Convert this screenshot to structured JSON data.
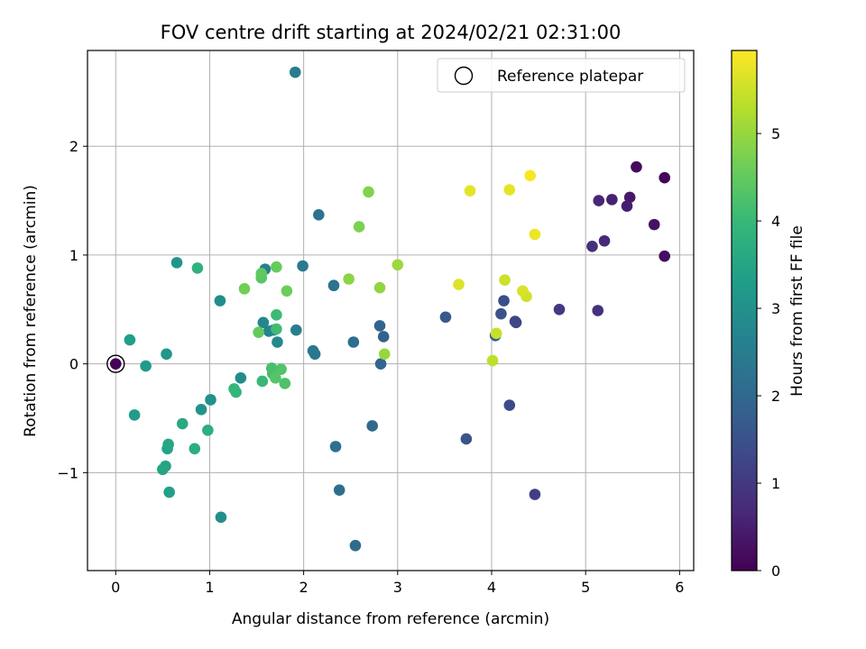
{
  "chart_data": {
    "type": "scatter",
    "title": "FOV centre drift starting at 2024/02/21 02:31:00",
    "xlabel": "Angular distance from reference (arcmin)",
    "ylabel": "Rotation from reference (arcmin)",
    "xlim": [
      -0.3,
      6.15
    ],
    "ylim": [
      -1.9,
      2.88
    ],
    "xticks": [
      0,
      1,
      2,
      3,
      4,
      5,
      6
    ],
    "xtick_labels": [
      "0",
      "1",
      "2",
      "3",
      "4",
      "5",
      "6"
    ],
    "yticks": [
      -1,
      0,
      1,
      2
    ],
    "ytick_labels": [
      "−1",
      "0",
      "1",
      "2"
    ],
    "grid": true,
    "legend": {
      "position": "upper right",
      "entries": [
        "Reference platepar"
      ]
    },
    "reference": {
      "x": 0,
      "y": 0,
      "label": "Reference platepar"
    },
    "colorbar": {
      "label": "Hours from first FF file",
      "colormap": "viridis",
      "range": [
        0,
        5.95
      ],
      "ticks": [
        0,
        1,
        2,
        3,
        4,
        5
      ],
      "tick_labels": [
        "0",
        "1",
        "2",
        "3",
        "4",
        "5"
      ]
    },
    "points": [
      {
        "x": 0.0,
        "y": 0.0,
        "h": 0.0
      },
      {
        "x": 5.84,
        "y": 1.71,
        "h": 0.05
      },
      {
        "x": 5.54,
        "y": 1.81,
        "h": 0.15
      },
      {
        "x": 5.84,
        "y": 0.99,
        "h": 0.2
      },
      {
        "x": 5.73,
        "y": 1.28,
        "h": 0.3
      },
      {
        "x": 5.47,
        "y": 1.53,
        "h": 0.4
      },
      {
        "x": 5.44,
        "y": 1.45,
        "h": 0.5
      },
      {
        "x": 5.28,
        "y": 1.51,
        "h": 0.55
      },
      {
        "x": 5.14,
        "y": 1.5,
        "h": 0.65
      },
      {
        "x": 5.2,
        "y": 1.13,
        "h": 0.7
      },
      {
        "x": 5.07,
        "y": 1.08,
        "h": 0.8
      },
      {
        "x": 5.13,
        "y": 0.49,
        "h": 0.85
      },
      {
        "x": 4.72,
        "y": 0.5,
        "h": 1.0
      },
      {
        "x": 4.46,
        "y": -1.2,
        "h": 1.1
      },
      {
        "x": 4.25,
        "y": 0.39,
        "h": 1.2
      },
      {
        "x": 4.26,
        "y": 0.38,
        "h": 1.25
      },
      {
        "x": 4.19,
        "y": -0.38,
        "h": 1.35
      },
      {
        "x": 4.13,
        "y": 0.58,
        "h": 1.45
      },
      {
        "x": 4.1,
        "y": 0.46,
        "h": 1.55
      },
      {
        "x": 3.73,
        "y": -0.69,
        "h": 1.6
      },
      {
        "x": 3.51,
        "y": 0.43,
        "h": 1.7
      },
      {
        "x": 4.04,
        "y": 0.26,
        "h": 1.8
      },
      {
        "x": 2.85,
        "y": 0.25,
        "h": 1.85
      },
      {
        "x": 2.81,
        "y": 0.35,
        "h": 1.9
      },
      {
        "x": 2.82,
        "y": 0.0,
        "h": 1.95
      },
      {
        "x": 2.73,
        "y": -0.57,
        "h": 2.0
      },
      {
        "x": 2.55,
        "y": -1.67,
        "h": 2.05
      },
      {
        "x": 2.53,
        "y": 0.2,
        "h": 2.1
      },
      {
        "x": 2.38,
        "y": -1.16,
        "h": 2.15
      },
      {
        "x": 2.34,
        "y": -0.76,
        "h": 2.2
      },
      {
        "x": 2.32,
        "y": 0.72,
        "h": 2.25
      },
      {
        "x": 2.16,
        "y": 1.37,
        "h": 2.3
      },
      {
        "x": 2.12,
        "y": 0.09,
        "h": 2.35
      },
      {
        "x": 2.1,
        "y": 0.12,
        "h": 2.4
      },
      {
        "x": 1.99,
        "y": 0.9,
        "h": 2.45
      },
      {
        "x": 1.91,
        "y": 2.68,
        "h": 2.5
      },
      {
        "x": 1.92,
        "y": 0.31,
        "h": 2.55
      },
      {
        "x": 1.59,
        "y": 0.87,
        "h": 2.6
      },
      {
        "x": 1.68,
        "y": 0.31,
        "h": 2.65
      },
      {
        "x": 1.63,
        "y": 0.3,
        "h": 2.7
      },
      {
        "x": 1.57,
        "y": 0.38,
        "h": 2.75
      },
      {
        "x": 1.72,
        "y": 0.2,
        "h": 2.8
      },
      {
        "x": 1.33,
        "y": -0.13,
        "h": 2.85
      },
      {
        "x": 1.11,
        "y": 0.58,
        "h": 2.9
      },
      {
        "x": 1.12,
        "y": -1.41,
        "h": 2.95
      },
      {
        "x": 1.01,
        "y": -0.33,
        "h": 3.0
      },
      {
        "x": 0.91,
        "y": -0.42,
        "h": 3.05
      },
      {
        "x": 0.65,
        "y": 0.93,
        "h": 3.1
      },
      {
        "x": 0.54,
        "y": 0.09,
        "h": 3.15
      },
      {
        "x": 0.32,
        "y": -0.02,
        "h": 3.2
      },
      {
        "x": 0.2,
        "y": -0.47,
        "h": 3.25
      },
      {
        "x": 0.15,
        "y": 0.22,
        "h": 3.3
      },
      {
        "x": 0.57,
        "y": -1.18,
        "h": 3.35
      },
      {
        "x": 0.55,
        "y": -0.78,
        "h": 3.4
      },
      {
        "x": 0.53,
        "y": -0.94,
        "h": 3.45
      },
      {
        "x": 0.5,
        "y": -0.97,
        "h": 3.5
      },
      {
        "x": 0.56,
        "y": -0.74,
        "h": 3.55
      },
      {
        "x": 0.71,
        "y": -0.55,
        "h": 3.6
      },
      {
        "x": 0.84,
        "y": -0.78,
        "h": 3.7
      },
      {
        "x": 0.98,
        "y": -0.61,
        "h": 3.75
      },
      {
        "x": 0.87,
        "y": 0.88,
        "h": 3.8
      },
      {
        "x": 1.28,
        "y": -0.26,
        "h": 3.9
      },
      {
        "x": 1.26,
        "y": -0.23,
        "h": 3.95
      },
      {
        "x": 1.56,
        "y": -0.16,
        "h": 4.0
      },
      {
        "x": 1.71,
        "y": 0.45,
        "h": 4.05
      },
      {
        "x": 1.71,
        "y": 0.32,
        "h": 4.1
      },
      {
        "x": 1.67,
        "y": -0.09,
        "h": 4.15
      },
      {
        "x": 1.66,
        "y": -0.04,
        "h": 4.2
      },
      {
        "x": 1.8,
        "y": -0.18,
        "h": 4.25
      },
      {
        "x": 1.76,
        "y": -0.05,
        "h": 4.3
      },
      {
        "x": 1.7,
        "y": -0.13,
        "h": 4.35
      },
      {
        "x": 1.55,
        "y": 0.79,
        "h": 4.4
      },
      {
        "x": 1.55,
        "y": 0.83,
        "h": 4.45
      },
      {
        "x": 1.52,
        "y": 0.29,
        "h": 4.5
      },
      {
        "x": 1.71,
        "y": 0.89,
        "h": 4.55
      },
      {
        "x": 1.82,
        "y": 0.67,
        "h": 4.6
      },
      {
        "x": 1.37,
        "y": 0.69,
        "h": 4.65
      },
      {
        "x": 2.59,
        "y": 1.26,
        "h": 4.75
      },
      {
        "x": 2.69,
        "y": 1.58,
        "h": 4.8
      },
      {
        "x": 2.48,
        "y": 0.78,
        "h": 4.9
      },
      {
        "x": 2.81,
        "y": 0.7,
        "h": 4.95
      },
      {
        "x": 2.86,
        "y": 0.09,
        "h": 5.0
      },
      {
        "x": 3.0,
        "y": 0.91,
        "h": 5.05
      },
      {
        "x": 4.01,
        "y": 0.03,
        "h": 5.35
      },
      {
        "x": 4.05,
        "y": 0.28,
        "h": 5.45
      },
      {
        "x": 4.14,
        "y": 0.77,
        "h": 5.5
      },
      {
        "x": 4.37,
        "y": 0.62,
        "h": 5.55
      },
      {
        "x": 4.33,
        "y": 0.67,
        "h": 5.6
      },
      {
        "x": 3.65,
        "y": 0.73,
        "h": 5.65
      },
      {
        "x": 3.77,
        "y": 1.59,
        "h": 5.7
      },
      {
        "x": 4.19,
        "y": 1.6,
        "h": 5.75
      },
      {
        "x": 4.46,
        "y": 1.19,
        "h": 5.8
      },
      {
        "x": 4.41,
        "y": 1.73,
        "h": 5.9
      }
    ]
  }
}
